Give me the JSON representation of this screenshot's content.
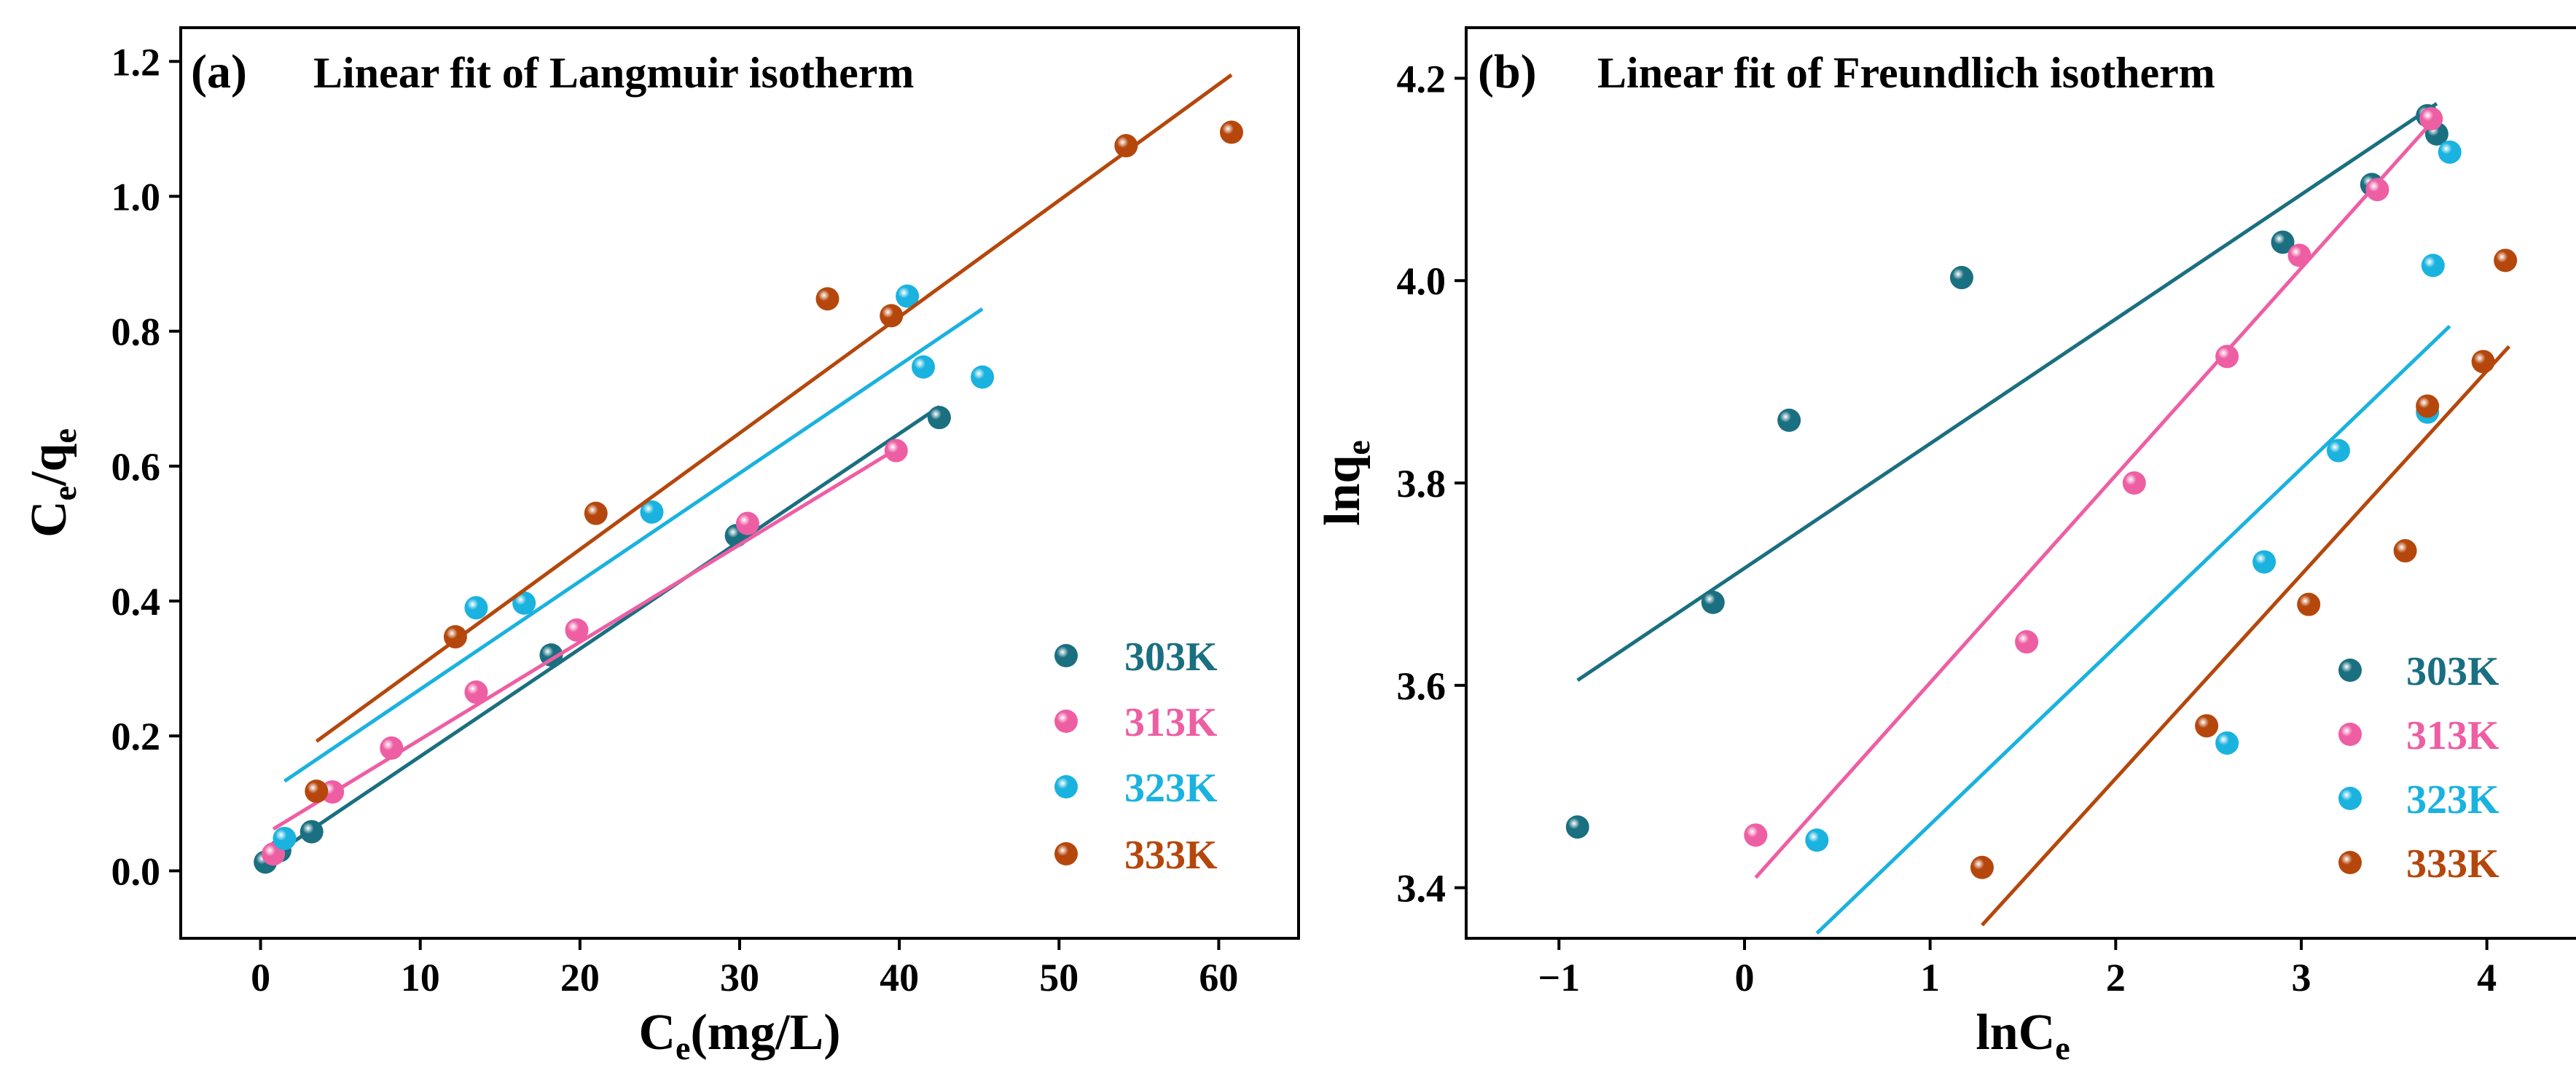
{
  "figure": {
    "colors": {
      "303K": "#1a6f80",
      "313K": "#ee5ea3",
      "323K": "#1ab2df",
      "333K": "#b5470c"
    }
  },
  "chart_data": [
    {
      "type": "scatter",
      "panel_label": "(a)",
      "title": "Linear fit of Langmuir isotherm",
      "xlabel": {
        "main": "C",
        "sub": "e",
        "rest": "(mg/L)"
      },
      "ylabel": {
        "p1": "C",
        "s1": "e",
        "p2": "/q",
        "s2": "e"
      },
      "xlim": [
        -5,
        65
      ],
      "ylim": [
        -0.1,
        1.25
      ],
      "xticks": [
        0,
        10,
        20,
        30,
        40,
        50,
        60
      ],
      "xtick_labels": [
        "0",
        "10",
        "20",
        "30",
        "40",
        "50",
        "60"
      ],
      "yticks": [
        0.0,
        0.2,
        0.4,
        0.6,
        0.8,
        1.0,
        1.2
      ],
      "ytick_labels": [
        "0.0",
        "0.2",
        "0.4",
        "0.6",
        "0.8",
        "1.0",
        "1.2"
      ],
      "legend_position": "lower-right",
      "series": [
        {
          "name": "303K",
          "points": [
            [
              0.3,
              0.013
            ],
            [
              1.2,
              0.03
            ],
            [
              3.2,
              0.058
            ],
            [
              18.2,
              0.32
            ],
            [
              29.8,
              0.497
            ],
            [
              42.5,
              0.672
            ]
          ],
          "fit": [
            [
              0.3,
              0.015
            ],
            [
              42.5,
              0.688
            ]
          ]
        },
        {
          "name": "313K",
          "points": [
            [
              0.8,
              0.025
            ],
            [
              4.5,
              0.117
            ],
            [
              8.2,
              0.182
            ],
            [
              13.5,
              0.265
            ],
            [
              19.8,
              0.357
            ],
            [
              30.5,
              0.515
            ],
            [
              39.8,
              0.623
            ]
          ],
          "fit": [
            [
              0.8,
              0.062
            ],
            [
              40.0,
              0.628
            ]
          ]
        },
        {
          "name": "323K",
          "points": [
            [
              1.5,
              0.048
            ],
            [
              13.5,
              0.39
            ],
            [
              16.5,
              0.397
            ],
            [
              24.5,
              0.532
            ],
            [
              40.5,
              0.852
            ],
            [
              41.5,
              0.747
            ],
            [
              45.2,
              0.732
            ]
          ],
          "fit": [
            [
              1.5,
              0.133
            ],
            [
              45.2,
              0.833
            ]
          ]
        },
        {
          "name": "333K",
          "points": [
            [
              3.5,
              0.118
            ],
            [
              12.2,
              0.347
            ],
            [
              21.0,
              0.53
            ],
            [
              35.5,
              0.848
            ],
            [
              39.5,
              0.823
            ],
            [
              54.2,
              1.075
            ],
            [
              60.8,
              1.095
            ]
          ],
          "fit": [
            [
              3.5,
              0.192
            ],
            [
              60.8,
              1.18
            ]
          ]
        }
      ]
    },
    {
      "type": "scatter",
      "panel_label": "(b)",
      "title": "Linear fit of Freundlich isotherm",
      "xlabel": {
        "main": "lnC",
        "sub": "e",
        "rest": ""
      },
      "ylabel": {
        "p1": "lnq",
        "s1": "e",
        "p2": "",
        "s2": ""
      },
      "xlim": [
        -1.5,
        4.5
      ],
      "ylim": [
        3.35,
        4.25
      ],
      "xticks": [
        -1,
        0,
        1,
        2,
        3,
        4
      ],
      "xtick_labels": [
        "−1",
        "0",
        "1",
        "2",
        "3",
        "4"
      ],
      "yticks": [
        3.4,
        3.6,
        3.8,
        4.0,
        4.2
      ],
      "ytick_labels": [
        "3.4",
        "3.6",
        "3.8",
        "4.0",
        "4.2"
      ],
      "legend_position": "lower-right",
      "series": [
        {
          "name": "303K",
          "points": [
            [
              -0.9,
              3.46
            ],
            [
              -0.17,
              3.682
            ],
            [
              0.24,
              3.862
            ],
            [
              1.17,
              4.003
            ],
            [
              2.9,
              4.038
            ],
            [
              3.38,
              4.095
            ],
            [
              3.68,
              4.163
            ],
            [
              3.73,
              4.145
            ]
          ],
          "fit": [
            [
              -0.9,
              3.605
            ],
            [
              3.73,
              4.175
            ]
          ]
        },
        {
          "name": "313K",
          "points": [
            [
              0.06,
              3.452
            ],
            [
              1.52,
              3.643
            ],
            [
              2.1,
              3.8
            ],
            [
              2.6,
              3.925
            ],
            [
              2.99,
              4.025
            ],
            [
              3.41,
              4.09
            ],
            [
              3.7,
              4.16
            ]
          ],
          "fit": [
            [
              0.06,
              3.41
            ],
            [
              3.72,
              4.16
            ]
          ]
        },
        {
          "name": "323K",
          "points": [
            [
              0.39,
              3.447
            ],
            [
              2.6,
              3.543
            ],
            [
              2.8,
              3.722
            ],
            [
              3.2,
              3.832
            ],
            [
              3.68,
              3.87
            ],
            [
              3.71,
              4.015
            ],
            [
              3.8,
              4.127
            ]
          ],
          "fit": [
            [
              0.39,
              3.355
            ],
            [
              3.8,
              3.955
            ]
          ]
        },
        {
          "name": "333K",
          "points": [
            [
              1.28,
              3.42
            ],
            [
              2.49,
              3.56
            ],
            [
              3.04,
              3.68
            ],
            [
              3.56,
              3.733
            ],
            [
              3.68,
              3.876
            ],
            [
              3.98,
              3.92
            ],
            [
              4.1,
              4.02
            ]
          ],
          "fit": [
            [
              1.28,
              3.363
            ],
            [
              4.12,
              3.935
            ]
          ]
        }
      ]
    }
  ]
}
